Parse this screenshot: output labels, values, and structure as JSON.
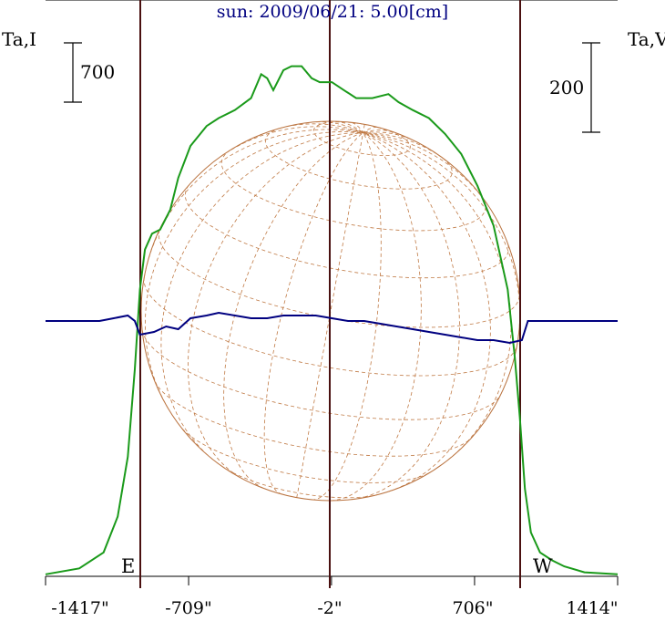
{
  "chart_data": {
    "type": "line",
    "title": "sun: 2009/06/21: 5.00[cm]",
    "left_axis_label": "Ta,I",
    "right_axis_label": "Ta,V",
    "xlabel": "",
    "x_ticks": [
      "-1417\"",
      "-709\"",
      "-2\"",
      "706\"",
      "1414\""
    ],
    "x_tick_values": [
      -1417,
      -709,
      -2,
      706,
      1414
    ],
    "xlim": [
      -1417,
      1414
    ],
    "scale_bars": {
      "left": "700",
      "right": "200"
    },
    "limb_markers": {
      "east": "E",
      "west": "W"
    },
    "limb_positions": [
      -945,
      943
    ],
    "colors": {
      "I": "#1a9a1a",
      "V": "#000080",
      "grid": "#b8703c",
      "markers": "#4a1010"
    },
    "series": [
      {
        "key": "I",
        "points": [
          [
            -1417,
            0.005
          ],
          [
            -1250,
            0.02
          ],
          [
            -1130,
            0.06
          ],
          [
            -1060,
            0.15
          ],
          [
            -1010,
            0.3
          ],
          [
            -975,
            0.52
          ],
          [
            -950,
            0.72
          ],
          [
            -925,
            0.82
          ],
          [
            -890,
            0.86
          ],
          [
            -850,
            0.87
          ],
          [
            -800,
            0.92
          ],
          [
            -760,
            1.0
          ],
          [
            -700,
            1.08
          ],
          [
            -620,
            1.13
          ],
          [
            -560,
            1.15
          ],
          [
            -480,
            1.17
          ],
          [
            -400,
            1.2
          ],
          [
            -350,
            1.26
          ],
          [
            -320,
            1.25
          ],
          [
            -290,
            1.22
          ],
          [
            -240,
            1.27
          ],
          [
            -200,
            1.28
          ],
          [
            -150,
            1.28
          ],
          [
            -100,
            1.25
          ],
          [
            -60,
            1.24
          ],
          [
            0,
            1.24
          ],
          [
            60,
            1.22
          ],
          [
            120,
            1.2
          ],
          [
            200,
            1.2
          ],
          [
            280,
            1.21
          ],
          [
            330,
            1.19
          ],
          [
            400,
            1.17
          ],
          [
            480,
            1.15
          ],
          [
            560,
            1.11
          ],
          [
            640,
            1.06
          ],
          [
            720,
            0.98
          ],
          [
            800,
            0.88
          ],
          [
            870,
            0.72
          ],
          [
            905,
            0.55
          ],
          [
            930,
            0.4
          ],
          [
            955,
            0.22
          ],
          [
            985,
            0.11
          ],
          [
            1030,
            0.06
          ],
          [
            1090,
            0.04
          ],
          [
            1150,
            0.025
          ],
          [
            1250,
            0.01
          ],
          [
            1414,
            0.005
          ]
        ]
      },
      {
        "key": "V",
        "points": [
          [
            -1417,
            0.0
          ],
          [
            -1150,
            0.0
          ],
          [
            -1080,
            0.01
          ],
          [
            -1010,
            0.02
          ],
          [
            -975,
            0.0
          ],
          [
            -950,
            -0.05
          ],
          [
            -880,
            -0.04
          ],
          [
            -820,
            -0.02
          ],
          [
            -760,
            -0.03
          ],
          [
            -700,
            0.01
          ],
          [
            -620,
            0.02
          ],
          [
            -560,
            0.03
          ],
          [
            -480,
            0.02
          ],
          [
            -400,
            0.01
          ],
          [
            -320,
            0.01
          ],
          [
            -240,
            0.02
          ],
          [
            -160,
            0.02
          ],
          [
            -80,
            0.02
          ],
          [
            0,
            0.01
          ],
          [
            80,
            0.0
          ],
          [
            160,
            0.0
          ],
          [
            240,
            -0.01
          ],
          [
            320,
            -0.02
          ],
          [
            400,
            -0.03
          ],
          [
            480,
            -0.04
          ],
          [
            560,
            -0.05
          ],
          [
            640,
            -0.06
          ],
          [
            720,
            -0.07
          ],
          [
            800,
            -0.07
          ],
          [
            880,
            -0.08
          ],
          [
            940,
            -0.07
          ],
          [
            970,
            0.0
          ],
          [
            1050,
            0.0
          ],
          [
            1200,
            0.0
          ],
          [
            1414,
            0.0
          ]
        ]
      }
    ],
    "grid": false,
    "legend": "none"
  }
}
